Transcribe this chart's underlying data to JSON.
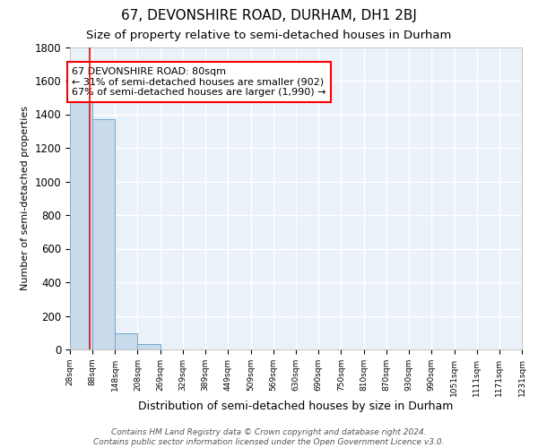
{
  "title": "67, DEVONSHIRE ROAD, DURHAM, DH1 2BJ",
  "subtitle": "Size of property relative to semi-detached houses in Durham",
  "xlabel": "Distribution of semi-detached houses by size in Durham",
  "ylabel": "Number of semi-detached properties",
  "bar_color": "#c9daea",
  "bar_edge_color": "#6aaad4",
  "background_color": "#eaf1f8",
  "grid_color": "#ffffff",
  "red_line_x": 80,
  "annotation_text": "67 DEVONSHIRE ROAD: 80sqm\n← 31% of semi-detached houses are smaller (902)\n67% of semi-detached houses are larger (1,990) →",
  "bins": [
    28,
    88,
    148,
    208,
    269,
    329,
    389,
    449,
    509,
    569,
    630,
    690,
    750,
    810,
    870,
    930,
    990,
    1051,
    1111,
    1171,
    1231
  ],
  "bin_labels": [
    "28sqm",
    "88sqm",
    "148sqm",
    "208sqm",
    "269sqm",
    "329sqm",
    "389sqm",
    "449sqm",
    "509sqm",
    "569sqm",
    "630sqm",
    "690sqm",
    "750sqm",
    "810sqm",
    "870sqm",
    "930sqm",
    "990sqm",
    "1051sqm",
    "1111sqm",
    "1171sqm",
    "1231sqm"
  ],
  "counts": [
    1480,
    1370,
    95,
    30,
    0,
    0,
    0,
    0,
    0,
    0,
    0,
    0,
    0,
    0,
    0,
    0,
    0,
    0,
    0,
    0
  ],
  "footer": "Contains HM Land Registry data © Crown copyright and database right 2024.\nContains public sector information licensed under the Open Government Licence v3.0.",
  "ylim": [
    0,
    1800
  ],
  "title_fontsize": 11,
  "subtitle_fontsize": 9.5,
  "xlabel_fontsize": 9,
  "ylabel_fontsize": 8,
  "footer_fontsize": 6.5,
  "annotation_fontsize": 8
}
